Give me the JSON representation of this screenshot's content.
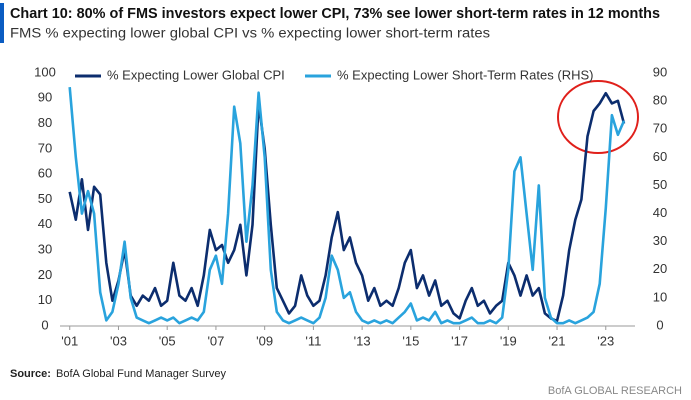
{
  "chart_data": {
    "type": "line",
    "title": "Chart 10: 80% of FMS investors expect lower CPI, 73% see lower short-term rates in 12 months",
    "subtitle": "FMS % expecting lower global CPI vs % expecting lower short-term rates",
    "source_label": "Source:",
    "source": "BofA Global Fund Manager Survey",
    "footer": "BofA GLOBAL RESEARCH",
    "x": [
      2001,
      2001.25,
      2001.5,
      2001.75,
      2002,
      2002.25,
      2002.5,
      2002.75,
      2003,
      2003.25,
      2003.5,
      2003.75,
      2004,
      2004.25,
      2004.5,
      2004.75,
      2005,
      2005.25,
      2005.5,
      2005.75,
      2006,
      2006.25,
      2006.5,
      2006.75,
      2007,
      2007.25,
      2007.5,
      2007.75,
      2008,
      2008.25,
      2008.5,
      2008.75,
      2009,
      2009.25,
      2009.5,
      2009.75,
      2010,
      2010.25,
      2010.5,
      2010.75,
      2011,
      2011.25,
      2011.5,
      2011.75,
      2012,
      2012.25,
      2012.5,
      2012.75,
      2013,
      2013.25,
      2013.5,
      2013.75,
      2014,
      2014.25,
      2014.5,
      2014.75,
      2015,
      2015.25,
      2015.5,
      2015.75,
      2016,
      2016.25,
      2016.5,
      2016.75,
      2017,
      2017.25,
      2017.5,
      2017.75,
      2018,
      2018.25,
      2018.5,
      2018.75,
      2019,
      2019.25,
      2019.5,
      2019.75,
      2020,
      2020.25,
      2020.5,
      2020.75,
      2021,
      2021.25,
      2021.5,
      2021.75,
      2022,
      2022.25,
      2022.5,
      2022.75,
      2023,
      2023.25,
      2023.5,
      2023.75
    ],
    "series": [
      {
        "name": "% Expecting Lower Global CPI",
        "color": "#0c2d6e",
        "axis": "y",
        "values": [
          53,
          42,
          58,
          38,
          55,
          52,
          25,
          10,
          18,
          30,
          12,
          8,
          12,
          10,
          15,
          8,
          10,
          25,
          12,
          10,
          15,
          8,
          20,
          38,
          30,
          32,
          25,
          30,
          40,
          20,
          40,
          88,
          70,
          40,
          15,
          10,
          5,
          8,
          20,
          12,
          8,
          10,
          20,
          35,
          45,
          30,
          35,
          25,
          20,
          10,
          15,
          8,
          10,
          8,
          15,
          25,
          30,
          15,
          20,
          12,
          18,
          8,
          10,
          5,
          3,
          10,
          15,
          8,
          10,
          5,
          8,
          10,
          25,
          20,
          12,
          20,
          12,
          15,
          5,
          3,
          2,
          12,
          30,
          42,
          50,
          75,
          85,
          88,
          92,
          88,
          89,
          80
        ]
      },
      {
        "name": "% Expecting Lower Short-Term Rates (RHS)",
        "color": "#29a3dd",
        "axis": "y2",
        "values": [
          85,
          60,
          40,
          48,
          40,
          12,
          2,
          5,
          15,
          30,
          10,
          3,
          2,
          1,
          2,
          3,
          2,
          3,
          1,
          2,
          3,
          2,
          5,
          20,
          25,
          15,
          40,
          78,
          65,
          30,
          50,
          83,
          60,
          20,
          5,
          2,
          1,
          2,
          3,
          2,
          1,
          3,
          10,
          25,
          20,
          10,
          12,
          5,
          2,
          1,
          2,
          1,
          2,
          1,
          3,
          5,
          8,
          2,
          3,
          2,
          5,
          1,
          2,
          1,
          1,
          2,
          3,
          1,
          1,
          2,
          1,
          3,
          20,
          55,
          60,
          40,
          20,
          50,
          10,
          3,
          1,
          1,
          2,
          1,
          2,
          3,
          5,
          15,
          42,
          75,
          68,
          73
        ]
      }
    ],
    "xlim": [
      2000.6,
      2024.2
    ],
    "xticks": [
      {
        "value": 2001,
        "label": "'01"
      },
      {
        "value": 2003,
        "label": "'03"
      },
      {
        "value": 2005,
        "label": "'05"
      },
      {
        "value": 2007,
        "label": "'07"
      },
      {
        "value": 2009,
        "label": "'09"
      },
      {
        "value": 2011,
        "label": "'11"
      },
      {
        "value": 2013,
        "label": "'13"
      },
      {
        "value": 2015,
        "label": "'15"
      },
      {
        "value": 2017,
        "label": "'17"
      },
      {
        "value": 2019,
        "label": "'19"
      },
      {
        "value": 2021,
        "label": "'21"
      },
      {
        "value": 2023,
        "label": "'23"
      }
    ],
    "ylim": [
      0,
      100
    ],
    "yticks": [
      0,
      10,
      20,
      30,
      40,
      50,
      60,
      70,
      80,
      90,
      100
    ],
    "y2lim": [
      0,
      90
    ],
    "y2ticks": [
      0,
      10,
      20,
      30,
      40,
      50,
      60,
      70,
      80,
      90
    ],
    "grid": false
  }
}
